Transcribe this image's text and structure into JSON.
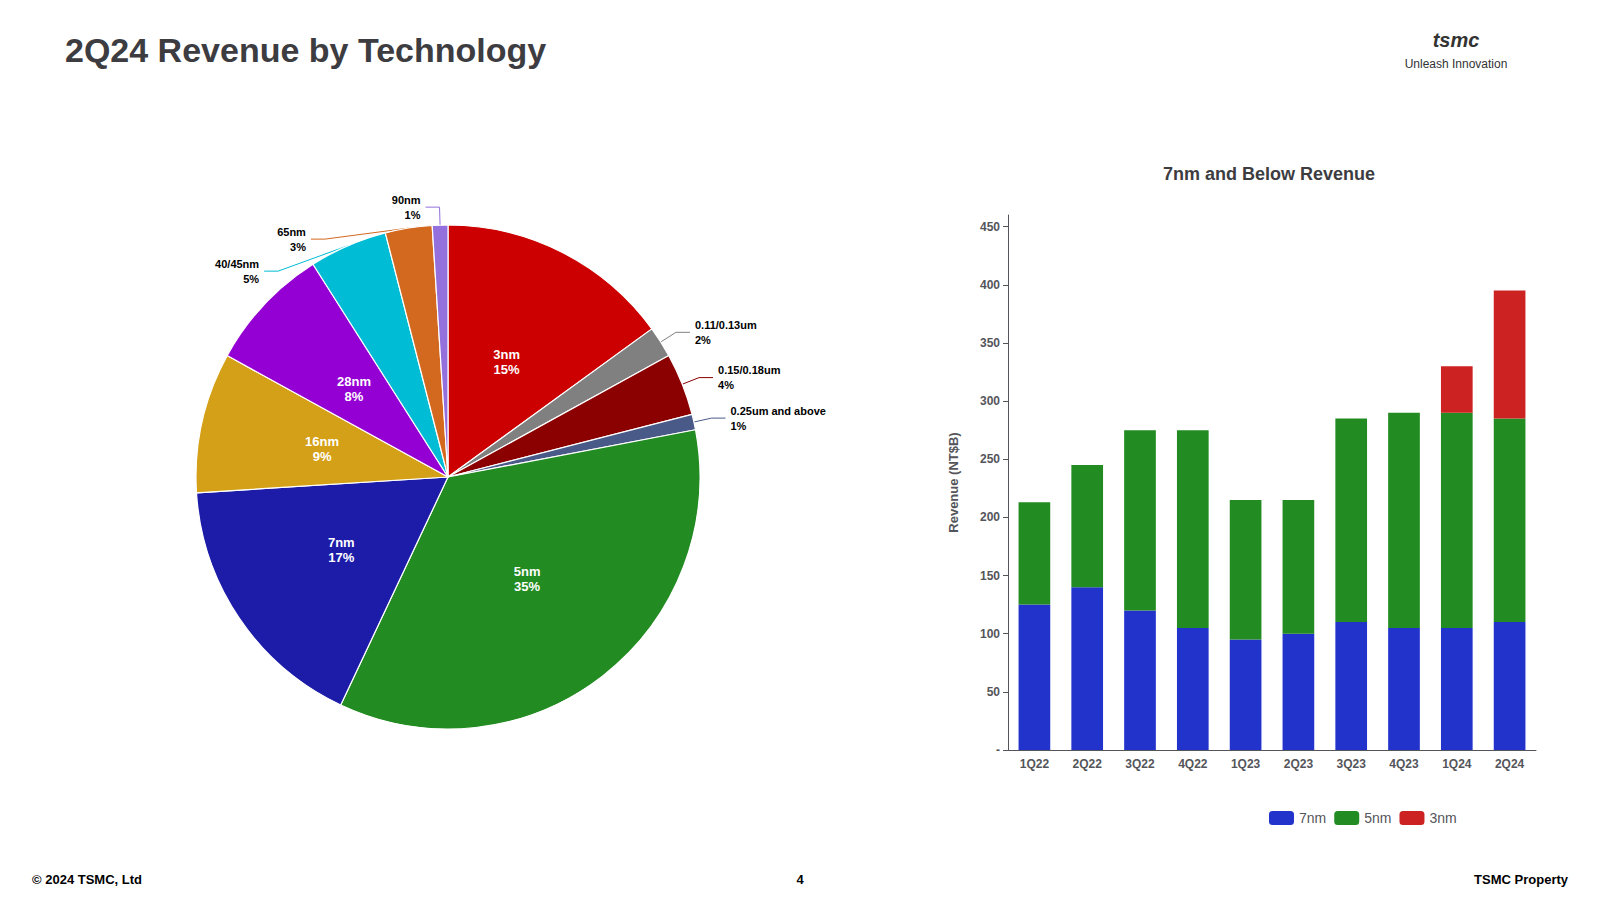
{
  "chart_data": [
    {
      "type": "pie",
      "title": "2Q24 Revenue by Technology",
      "categories": [
        "3nm",
        "0.11/0.13um",
        "0.15/0.18um",
        "0.25um and above",
        "5nm",
        "7nm",
        "16nm",
        "28nm",
        "40/45nm",
        "65nm",
        "90nm"
      ],
      "values": [
        15,
        2,
        4,
        1,
        35,
        17,
        9,
        8,
        5,
        3,
        1
      ],
      "value_labels": [
        "15%",
        "2%",
        "4%",
        "1%",
        "35%",
        "17%",
        "9%",
        "8%",
        "5%",
        "3%",
        "1%"
      ],
      "colors": [
        "#cc0000",
        "#808080",
        "#8b0000",
        "#4a5a88",
        "#228b22",
        "#1c1ca8",
        "#d4a017",
        "#9400d3",
        "#00bcd4",
        "#d2691e",
        "#9370db"
      ],
      "data_labels": true,
      "annotations": [
        "© 2024 TSMC, Ltd",
        "4",
        "TSMC Property",
        "tsmc",
        "Unleash Innovation"
      ]
    },
    {
      "type": "bar",
      "title": "7nm and Below Revenue",
      "categories": [
        "1Q22",
        "2Q22",
        "3Q22",
        "4Q22",
        "1Q23",
        "2Q23",
        "3Q23",
        "4Q23",
        "1Q24",
        "2Q24"
      ],
      "series": [
        {
          "name": "7nm",
          "color": "#2233cc",
          "values": [
            125,
            140,
            120,
            105,
            95,
            100,
            110,
            105,
            105,
            110
          ]
        },
        {
          "name": "5nm",
          "color": "#228b22",
          "values": [
            88,
            105,
            155,
            170,
            120,
            115,
            175,
            185,
            185,
            175
          ]
        },
        {
          "name": "3nm",
          "color": "#cc2222",
          "values": [
            0,
            0,
            0,
            0,
            0,
            0,
            0,
            0,
            40,
            110
          ]
        }
      ],
      "stacked": true,
      "ylabel": "Revenue (NT$B)",
      "ylim": [
        0,
        460
      ],
      "yticks": [
        {
          "value": 0,
          "label": "-"
        },
        50,
        100,
        150,
        200,
        250,
        300,
        350,
        400,
        450
      ],
      "grid": false,
      "legend": "bottom"
    }
  ]
}
